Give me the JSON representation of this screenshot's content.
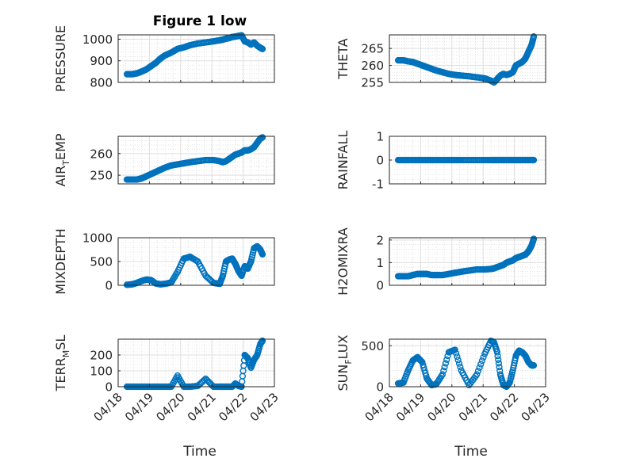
{
  "figure": {
    "title": "Figure 1 low",
    "x_tick_labels": [
      "04/18",
      "04/19",
      "04/20",
      "04/21",
      "04/22",
      "04/23"
    ],
    "x_label": "Time"
  },
  "colors": {
    "marker": "#0072BD",
    "axis": "#262626",
    "grid_major": "#dfdfdf",
    "grid_minor": "#cfcfcf",
    "background": "#ffffff"
  },
  "chart_data": [
    {
      "type": "scatter",
      "ylabel": "PRESSURE",
      "ylim": [
        800,
        1020
      ],
      "yticks": [
        800,
        900,
        1000
      ],
      "xlim": [
        0,
        5
      ],
      "grid": true,
      "x": [
        0.28,
        0.45,
        0.6,
        0.75,
        0.9,
        1.05,
        1.2,
        1.35,
        1.5,
        1.7,
        1.9,
        2.1,
        2.3,
        2.55,
        2.8,
        3.05,
        3.25,
        3.35,
        3.45,
        3.55,
        3.65,
        3.75,
        3.85,
        3.95,
        4.05,
        4.15,
        4.25,
        4.35,
        4.45,
        4.55,
        4.62
      ],
      "y": [
        838,
        838,
        842,
        850,
        860,
        875,
        890,
        910,
        925,
        938,
        955,
        962,
        972,
        980,
        985,
        990,
        995,
        998,
        1002,
        1005,
        1010,
        1012,
        1015,
        1018,
        990,
        985,
        975,
        985,
        970,
        960,
        955
      ]
    },
    {
      "type": "scatter",
      "ylabel": "THETA",
      "ylim": [
        255,
        269
      ],
      "yticks": [
        255,
        260,
        265
      ],
      "xlim": [
        0,
        5
      ],
      "grid": true,
      "x": [
        0.28,
        0.45,
        0.6,
        0.75,
        0.9,
        1.05,
        1.2,
        1.35,
        1.5,
        1.7,
        1.9,
        2.1,
        2.3,
        2.55,
        2.8,
        3.05,
        3.25,
        3.35,
        3.45,
        3.55,
        3.65,
        3.75,
        3.85,
        3.95,
        4.05,
        4.15,
        4.25,
        4.35,
        4.45,
        4.55,
        4.62
      ],
      "y": [
        261.5,
        261.5,
        261.2,
        261,
        260.5,
        260,
        259.5,
        259,
        258.5,
        258,
        257.5,
        257.2,
        257,
        256.8,
        256.5,
        256.2,
        255.5,
        255,
        256,
        257,
        257.5,
        257.2,
        257.5,
        258,
        260,
        260.5,
        261,
        262,
        264,
        266,
        268.5
      ]
    },
    {
      "type": "scatter",
      "ylabel": "AIR_TEMP",
      "ylim": [
        246,
        268
      ],
      "yticks": [
        250,
        260
      ],
      "xlim": [
        0,
        5
      ],
      "grid": true,
      "x": [
        0.28,
        0.45,
        0.6,
        0.75,
        0.9,
        1.05,
        1.2,
        1.35,
        1.5,
        1.7,
        1.9,
        2.1,
        2.3,
        2.55,
        2.8,
        3.05,
        3.25,
        3.35,
        3.45,
        3.55,
        3.65,
        3.75,
        3.85,
        3.95,
        4.05,
        4.15,
        4.25,
        4.35,
        4.45,
        4.55,
        4.62
      ],
      "y": [
        248,
        248,
        248,
        248.5,
        249.5,
        250.5,
        251.5,
        252.5,
        253.5,
        254.5,
        255,
        255.5,
        256,
        256.5,
        257,
        257,
        256.5,
        256,
        256.5,
        257.5,
        258.5,
        259.5,
        260,
        260.5,
        261.5,
        261.5,
        262,
        263,
        265,
        267,
        267.5
      ]
    },
    {
      "type": "scatter",
      "ylabel": "RAINFALL",
      "ylim": [
        -1,
        1
      ],
      "yticks": [
        -1,
        0,
        1
      ],
      "xlim": [
        0,
        5
      ],
      "grid": true,
      "x": [
        0.28,
        0.45,
        0.6,
        0.75,
        0.9,
        1.05,
        1.2,
        1.35,
        1.5,
        1.7,
        1.9,
        2.1,
        2.3,
        2.55,
        2.8,
        3.05,
        3.25,
        3.35,
        3.45,
        3.55,
        3.65,
        3.75,
        3.85,
        3.95,
        4.05,
        4.15,
        4.25,
        4.35,
        4.45,
        4.55,
        4.62
      ],
      "y": [
        0,
        0,
        0,
        0,
        0,
        0,
        0,
        0,
        0,
        0,
        0,
        0,
        0,
        0,
        0,
        0,
        0,
        0,
        0,
        0,
        0,
        0,
        0,
        0,
        0,
        0,
        0,
        0,
        0,
        0,
        0
      ]
    },
    {
      "type": "scatter",
      "ylabel": "MIXDEPTH",
      "ylim": [
        0,
        1000
      ],
      "yticks": [
        0,
        500,
        1000
      ],
      "xlim": [
        0,
        5
      ],
      "grid": true,
      "x": [
        0.28,
        0.45,
        0.6,
        0.75,
        0.9,
        1.05,
        1.2,
        1.35,
        1.5,
        1.7,
        1.9,
        2.1,
        2.3,
        2.55,
        2.8,
        3.05,
        3.25,
        3.35,
        3.45,
        3.55,
        3.65,
        3.75,
        3.85,
        3.95,
        4.05,
        4.15,
        4.25,
        4.35,
        4.45,
        4.55,
        4.62
      ],
      "y": [
        10,
        20,
        50,
        90,
        120,
        110,
        40,
        20,
        30,
        60,
        280,
        560,
        600,
        500,
        200,
        50,
        30,
        200,
        500,
        540,
        560,
        450,
        300,
        200,
        400,
        350,
        500,
        780,
        820,
        750,
        650
      ]
    },
    {
      "type": "scatter",
      "ylabel": "H2OMIXRA",
      "ylim": [
        0,
        2.1
      ],
      "yticks": [
        0,
        1,
        2
      ],
      "xlim": [
        0,
        5
      ],
      "grid": true,
      "x": [
        0.28,
        0.45,
        0.6,
        0.75,
        0.9,
        1.05,
        1.2,
        1.35,
        1.5,
        1.7,
        1.9,
        2.1,
        2.3,
        2.55,
        2.8,
        3.05,
        3.25,
        3.35,
        3.45,
        3.55,
        3.65,
        3.75,
        3.85,
        3.95,
        4.05,
        4.15,
        4.25,
        4.35,
        4.45,
        4.55,
        4.62
      ],
      "y": [
        0.4,
        0.4,
        0.4,
        0.45,
        0.5,
        0.5,
        0.5,
        0.45,
        0.45,
        0.45,
        0.5,
        0.55,
        0.6,
        0.65,
        0.7,
        0.7,
        0.72,
        0.75,
        0.8,
        0.85,
        0.9,
        1,
        1.05,
        1.1,
        1.2,
        1.25,
        1.3,
        1.35,
        1.5,
        1.75,
        2.05
      ]
    },
    {
      "type": "scatter",
      "ylabel": "TERR_MSL",
      "ylim": [
        0,
        300
      ],
      "yticks": [
        0,
        100,
        200
      ],
      "xlim": [
        0,
        5
      ],
      "grid": true,
      "x": [
        0.28,
        0.45,
        0.6,
        0.75,
        0.9,
        1.05,
        1.2,
        1.35,
        1.5,
        1.7,
        1.9,
        2.1,
        2.3,
        2.55,
        2.8,
        3.05,
        3.25,
        3.35,
        3.45,
        3.55,
        3.65,
        3.75,
        3.85,
        3.95,
        4.05,
        4.15,
        4.25,
        4.35,
        4.45,
        4.55,
        4.62
      ],
      "y": [
        0,
        0,
        0,
        0,
        0,
        0,
        0,
        0,
        0,
        0,
        70,
        0,
        0,
        5,
        50,
        0,
        0,
        0,
        0,
        0,
        0,
        20,
        5,
        0,
        200,
        180,
        120,
        170,
        200,
        270,
        290
      ]
    },
    {
      "type": "scatter",
      "ylabel": "SUN_FLUX",
      "ylim": [
        0,
        580
      ],
      "yticks": [
        0,
        500
      ],
      "xlim": [
        0,
        5
      ],
      "grid": true,
      "x": [
        0.28,
        0.45,
        0.6,
        0.75,
        0.9,
        1.05,
        1.2,
        1.35,
        1.5,
        1.7,
        1.9,
        2.1,
        2.3,
        2.55,
        2.8,
        3.05,
        3.25,
        3.35,
        3.45,
        3.55,
        3.65,
        3.75,
        3.85,
        3.95,
        4.05,
        4.15,
        4.25,
        4.35,
        4.45,
        4.55,
        4.62
      ],
      "y": [
        40,
        50,
        200,
        320,
        360,
        300,
        100,
        20,
        30,
        150,
        420,
        450,
        200,
        20,
        150,
        400,
        560,
        540,
        420,
        150,
        20,
        0,
        50,
        200,
        380,
        440,
        420,
        380,
        300,
        260,
        260
      ]
    }
  ]
}
